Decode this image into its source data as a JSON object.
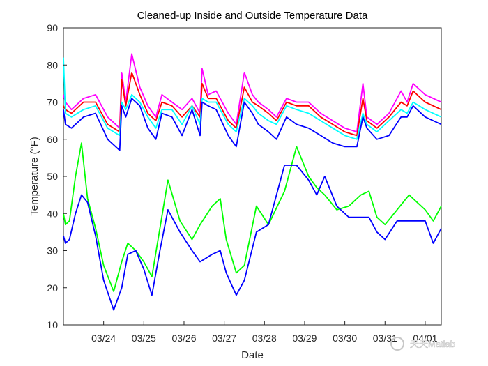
{
  "chart_data": {
    "type": "line",
    "title": "Cleaned-up Inside and Outside Temperature Data",
    "xlabel": "Date",
    "ylabel": "Temperature (°F)",
    "xlim": [
      23.0,
      32.4
    ],
    "ylim": [
      10,
      90
    ],
    "yticks": [
      10,
      20,
      30,
      40,
      50,
      60,
      70,
      80,
      90
    ],
    "xticks": [
      {
        "x": 24,
        "label": "03/24"
      },
      {
        "x": 25,
        "label": "03/25"
      },
      {
        "x": 26,
        "label": "03/26"
      },
      {
        "x": 27,
        "label": "03/27"
      },
      {
        "x": 28,
        "label": "03/28"
      },
      {
        "x": 29,
        "label": "03/29"
      },
      {
        "x": 30,
        "label": "03/30"
      },
      {
        "x": 31,
        "label": "03/31"
      },
      {
        "x": 32,
        "label": "04/01"
      }
    ],
    "grid": false,
    "legend": "none",
    "series": [
      {
        "color": "#ff00ff",
        "x": [
          23.0,
          23.05,
          23.2,
          23.5,
          23.8,
          24.1,
          24.4,
          24.45,
          24.55,
          24.7,
          24.9,
          25.1,
          25.3,
          25.45,
          25.7,
          25.95,
          26.2,
          26.4,
          26.45,
          26.6,
          26.8,
          27.1,
          27.3,
          27.5,
          27.7,
          27.85,
          28.1,
          28.3,
          28.55,
          28.8,
          29.1,
          29.4,
          29.7,
          30.0,
          30.3,
          30.45,
          30.55,
          30.8,
          31.1,
          31.4,
          31.55,
          31.7,
          32.0,
          32.4
        ],
        "values": [
          72,
          70,
          68,
          71,
          72,
          66,
          63,
          78,
          70,
          83,
          74,
          69,
          66,
          72,
          70,
          68,
          71,
          67,
          79,
          72,
          73,
          67,
          64,
          78,
          72,
          70,
          68,
          66,
          71,
          70,
          70,
          67,
          65,
          63,
          62,
          75,
          66,
          64,
          67,
          73,
          70,
          75,
          72,
          70
        ]
      },
      {
        "color": "#ff0000",
        "x": [
          23.0,
          23.05,
          23.2,
          23.5,
          23.8,
          24.1,
          24.4,
          24.45,
          24.55,
          24.7,
          24.9,
          25.1,
          25.3,
          25.45,
          25.7,
          25.95,
          26.2,
          26.4,
          26.45,
          26.6,
          26.8,
          27.1,
          27.3,
          27.5,
          27.7,
          27.85,
          28.1,
          28.3,
          28.55,
          28.8,
          29.1,
          29.4,
          29.7,
          30.0,
          30.3,
          30.45,
          30.55,
          30.8,
          31.1,
          31.4,
          31.55,
          31.7,
          32.0,
          32.4
        ],
        "values": [
          69,
          68,
          67,
          70,
          70,
          64,
          62,
          76,
          69,
          78,
          72,
          67,
          65,
          70,
          69,
          66,
          69,
          66,
          75,
          71,
          71,
          65,
          63,
          74,
          70,
          69,
          67,
          65,
          70,
          69,
          69,
          66,
          64,
          62,
          61,
          71,
          65,
          63,
          66,
          70,
          69,
          73,
          70,
          68
        ]
      },
      {
        "color": "#00ffff",
        "x": [
          23.0,
          23.05,
          23.2,
          23.5,
          23.8,
          24.1,
          24.4,
          24.45,
          24.55,
          24.7,
          24.9,
          25.1,
          25.3,
          25.45,
          25.7,
          25.95,
          26.2,
          26.4,
          26.45,
          26.6,
          26.8,
          27.1,
          27.3,
          27.5,
          27.7,
          27.85,
          28.1,
          28.3,
          28.55,
          28.8,
          29.1,
          29.4,
          29.7,
          30.0,
          30.3,
          30.45,
          30.55,
          30.8,
          31.1,
          31.4,
          31.55,
          31.7,
          32.0,
          32.4
        ],
        "values": [
          82,
          67,
          66,
          68,
          69,
          63,
          61,
          70,
          68,
          72,
          70,
          66,
          63,
          68,
          68,
          64,
          69,
          64,
          71,
          70,
          70,
          64,
          62,
          71,
          69,
          67,
          65,
          64,
          69,
          68,
          67,
          65,
          63,
          61,
          60,
          67,
          64,
          62,
          65,
          68,
          67,
          70,
          68,
          66
        ]
      },
      {
        "color": "#0000ff",
        "x": [
          23.0,
          23.05,
          23.2,
          23.5,
          23.8,
          24.1,
          24.4,
          24.45,
          24.55,
          24.7,
          24.9,
          25.1,
          25.3,
          25.45,
          25.7,
          25.95,
          26.2,
          26.4,
          26.45,
          26.6,
          26.8,
          27.1,
          27.3,
          27.5,
          27.7,
          27.85,
          28.1,
          28.3,
          28.55,
          28.8,
          29.1,
          29.4,
          29.7,
          30.0,
          30.3,
          30.45,
          30.55,
          30.8,
          31.1,
          31.4,
          31.55,
          31.7,
          32.0,
          32.4
        ],
        "values": [
          68,
          64,
          63,
          66,
          67,
          60,
          57,
          69,
          66,
          71,
          69,
          63,
          60,
          67,
          66,
          61,
          68,
          61,
          70,
          69,
          68,
          61,
          58,
          70,
          67,
          64,
          62,
          60,
          66,
          64,
          63,
          61,
          59,
          58,
          58,
          66,
          63,
          60,
          61,
          66,
          66,
          69,
          66,
          64
        ]
      },
      {
        "color": "#00ff00",
        "x": [
          23.0,
          23.05,
          23.15,
          23.3,
          23.45,
          23.6,
          23.8,
          24.0,
          24.25,
          24.45,
          24.6,
          24.8,
          25.0,
          25.2,
          25.4,
          25.6,
          25.9,
          26.2,
          26.4,
          26.7,
          26.9,
          27.05,
          27.3,
          27.5,
          27.8,
          28.1,
          28.5,
          28.8,
          29.1,
          29.3,
          29.5,
          29.8,
          30.1,
          30.4,
          30.6,
          30.8,
          31.0,
          31.3,
          31.6,
          31.8,
          32.0,
          32.2,
          32.4
        ],
        "values": [
          40,
          37,
          38,
          50,
          59,
          44,
          36,
          26,
          19,
          27,
          32,
          30,
          27,
          23,
          36,
          49,
          38,
          33,
          37,
          42,
          44,
          33,
          24,
          26,
          42,
          37,
          46,
          58,
          50,
          47,
          45,
          41,
          42,
          45,
          46,
          39,
          37,
          41,
          45,
          43,
          41,
          38,
          42
        ]
      },
      {
        "color": "#0000ff",
        "x": [
          23.0,
          23.05,
          23.15,
          23.3,
          23.45,
          23.6,
          23.8,
          24.0,
          24.25,
          24.45,
          24.6,
          24.8,
          25.0,
          25.2,
          25.4,
          25.6,
          25.9,
          26.2,
          26.4,
          26.7,
          26.9,
          27.05,
          27.3,
          27.5,
          27.8,
          28.1,
          28.5,
          28.8,
          29.1,
          29.3,
          29.5,
          29.8,
          30.1,
          30.4,
          30.6,
          30.8,
          31.0,
          31.3,
          31.6,
          31.8,
          32.0,
          32.2,
          32.4
        ],
        "values": [
          34,
          32,
          33,
          40,
          45,
          43,
          34,
          22,
          14,
          20,
          29,
          30,
          25,
          18,
          30,
          41,
          35,
          30,
          27,
          29,
          30,
          24,
          18,
          22,
          35,
          37,
          53,
          53,
          49,
          45,
          50,
          42,
          39,
          39,
          39,
          35,
          33,
          38,
          38,
          38,
          38,
          32,
          36
        ]
      }
    ]
  },
  "watermark": {
    "text": "天天Matlab"
  }
}
